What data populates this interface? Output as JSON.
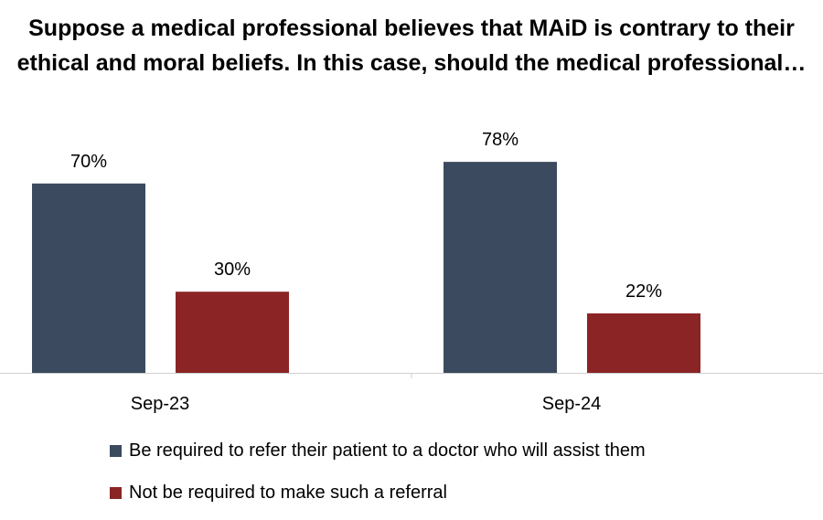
{
  "chart_data": {
    "type": "bar",
    "title": "Suppose a medical professional believes that MAiD is contrary to their ethical and moral beliefs. In this case, should the medical professional…",
    "categories": [
      "Sep-23",
      "Sep-24"
    ],
    "series": [
      {
        "name": "Be required to refer their patient to a doctor who will assist them",
        "values": [
          70,
          78
        ],
        "labels": [
          "70%",
          "78%"
        ],
        "color": "#3b4a5e"
      },
      {
        "name": "Not be required to make such a referral",
        "values": [
          30,
          22
        ],
        "labels": [
          "30%",
          "22%"
        ],
        "color": "#8b2424"
      }
    ],
    "ylim": [
      0,
      100
    ],
    "grid": false,
    "legend_position": "bottom"
  }
}
